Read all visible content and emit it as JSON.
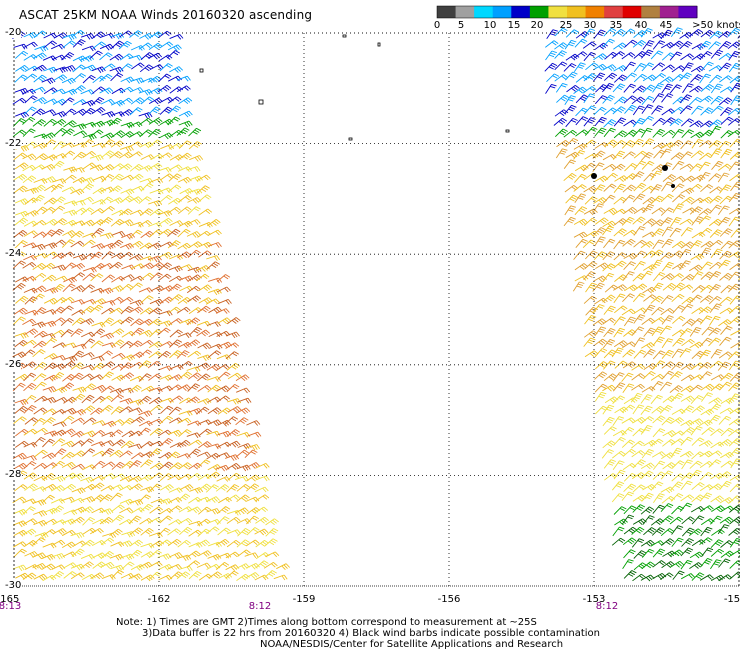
{
  "title": "ASCAT 25KM NOAA Winds 20160320 ascending",
  "colorbar": {
    "labels": [
      "0",
      "5",
      "10",
      "15",
      "20",
      "25",
      "30",
      "35",
      "40",
      "45",
      ">50 knots"
    ],
    "colors": [
      "#404040",
      "#a0a0a0",
      "#00d8ff",
      "#00a0ff",
      "#0000c8",
      "#00a000",
      "#f0e040",
      "#f0c020",
      "#f08000",
      "#e04040",
      "#e00000",
      "#b08040",
      "#a02090",
      "#6000c0"
    ]
  },
  "axes": {
    "lat_labels": [
      "-20",
      "-22",
      "-24",
      "-26",
      "-28",
      "-30"
    ],
    "lon_labels": [
      "-165",
      "-162",
      "-159",
      "-156",
      "-153",
      "-15"
    ],
    "lat_range": [
      -30,
      -20
    ],
    "lon_range": [
      -165,
      -150
    ],
    "grid": "dotted"
  },
  "time_labels": [
    "8:13",
    "8:12",
    "8:12"
  ],
  "notes": [
    "Note: 1) Times are GMT 2)Times along bottom correspond to measurement at ~25S",
    "3)Data buffer is 22 hrs from 20160320 4) Black wind barbs indicate possible contamination",
    "NOAA/NESDIS/Center for Satellite Applications and Research"
  ],
  "swaths": [
    {
      "name": "west",
      "lon_range_top": [
        -165,
        -161.8
      ],
      "lon_range_bottom": [
        -165,
        -159.5
      ],
      "speed_bands_knots": [
        {
          "lat_range": [
            -21.5,
            -20
          ],
          "colors": [
            "#0000c8",
            "#00a0ff"
          ]
        },
        {
          "lat_range": [
            -22,
            -21.2
          ],
          "colors": [
            "#00a000"
          ]
        },
        {
          "lat_range": [
            -23.5,
            -22
          ],
          "colors": [
            "#f0e040",
            "#f0c020"
          ]
        },
        {
          "lat_range": [
            -28,
            -23.5
          ],
          "colors": [
            "#e07030",
            "#c86020",
            "#f0c020"
          ]
        },
        {
          "lat_range": [
            -30,
            -28
          ],
          "colors": [
            "#f0e040",
            "#f0c020"
          ]
        }
      ]
    },
    {
      "name": "east",
      "lon_range_top": [
        -154.2,
        -150
      ],
      "lon_range_bottom": [
        -152.5,
        -150
      ],
      "speed_bands_knots": [
        {
          "lat_range": [
            -21.8,
            -20
          ],
          "colors": [
            "#00a0ff",
            "#0000c8"
          ]
        },
        {
          "lat_range": [
            -22,
            -21.2
          ],
          "colors": [
            "#00a000"
          ]
        },
        {
          "lat_range": [
            -26.5,
            -22
          ],
          "colors": [
            "#f0c020",
            "#e0a030"
          ]
        },
        {
          "lat_range": [
            -28.5,
            -26.5
          ],
          "colors": [
            "#f0e040"
          ]
        },
        {
          "lat_range": [
            -30,
            -27.5
          ],
          "colors": [
            "#00a000",
            "#006000"
          ]
        }
      ]
    }
  ]
}
